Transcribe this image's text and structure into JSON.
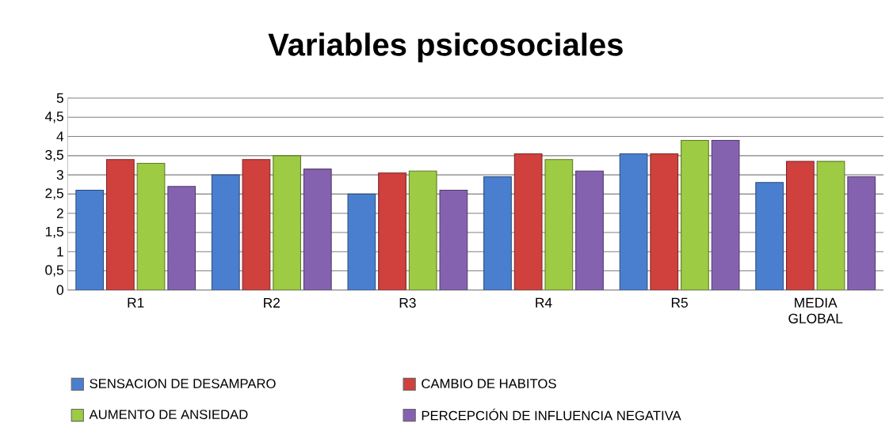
{
  "chart_data": {
    "type": "bar",
    "title": "Variables psicosociales",
    "categories": [
      "R1",
      "R2",
      "R3",
      "R4",
      "R5",
      "MEDIA GLOBAL"
    ],
    "series": [
      {
        "name": "SENSACION DE DESAMPARO",
        "color": "#4a7fd0",
        "values": [
          2.6,
          3.0,
          2.5,
          2.95,
          3.55,
          2.8
        ]
      },
      {
        "name": "CAMBIO DE HABITOS",
        "color": "#d0403d",
        "values": [
          3.4,
          3.4,
          3.05,
          3.55,
          3.55,
          3.35
        ]
      },
      {
        "name": "AUMENTO DE ANSIEDAD",
        "color": "#9dcb43",
        "values": [
          3.3,
          3.5,
          3.1,
          3.4,
          3.9,
          3.35
        ]
      },
      {
        "name": "PERCEPCIÓN DE INFLUENCIA NEGATIVA",
        "color": "#8562b0",
        "values": [
          2.7,
          3.15,
          2.6,
          3.1,
          3.9,
          2.95
        ]
      }
    ],
    "ylim": [
      0,
      5
    ],
    "yticks": [
      0,
      {
        "value": 0.5,
        "label": "0,5"
      },
      1,
      {
        "value": 1.5,
        "label": "1,5"
      },
      2,
      {
        "value": 2.5,
        "label": "2,5"
      },
      3,
      {
        "value": 3.5,
        "label": "3,5"
      },
      4,
      {
        "value": 4.5,
        "label": "4,5"
      },
      5
    ],
    "grid": "y",
    "legend": "bottom"
  }
}
